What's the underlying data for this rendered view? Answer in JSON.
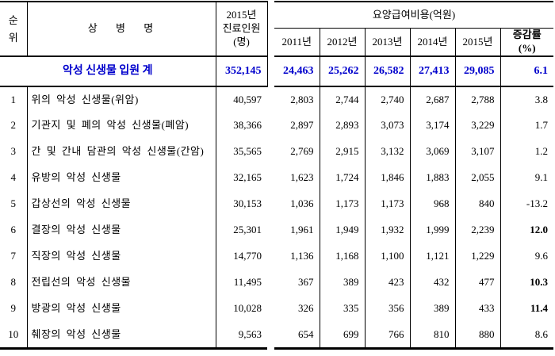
{
  "table": {
    "accent_blue": "#0000cc",
    "header": {
      "rank_lines": [
        "순",
        "위"
      ],
      "disease": "상 병 명",
      "patients_lines": [
        "2015년",
        "진료인원",
        "(명)"
      ],
      "cost_group": "요양급여비용(억원)",
      "years": [
        "2011년",
        "2012년",
        "2013년",
        "2014년",
        "2015년"
      ],
      "rate_lines": [
        "증감률",
        "(%)"
      ]
    },
    "summary": {
      "label": "악성 신생물 입원 계",
      "patients": "352,145",
      "values": [
        "24,463",
        "25,262",
        "26,582",
        "27,413",
        "29,085"
      ],
      "rate": "6.1"
    },
    "rows": [
      {
        "rank": "1",
        "name": "위의 악성 신생물(위암)",
        "patients": "40,597",
        "values": [
          "2,803",
          "2,744",
          "2,740",
          "2,687",
          "2,788"
        ],
        "rate": "3.8",
        "rate_bold": false
      },
      {
        "rank": "2",
        "name": "기관지 및 폐의 악성 신생물(폐암)",
        "patients": "38,366",
        "values": [
          "2,897",
          "2,893",
          "3,073",
          "3,174",
          "3,229"
        ],
        "rate": "1.7",
        "rate_bold": false
      },
      {
        "rank": "3",
        "name": "간 및 간내 담관의 악성 신생물(간암)",
        "patients": "35,565",
        "values": [
          "2,769",
          "2,915",
          "3,132",
          "3,069",
          "3,107"
        ],
        "rate": "1.2",
        "rate_bold": false
      },
      {
        "rank": "4",
        "name": "유방의 악성 신생물",
        "patients": "32,165",
        "values": [
          "1,623",
          "1,724",
          "1,846",
          "1,883",
          "2,055"
        ],
        "rate": "9.1",
        "rate_bold": false
      },
      {
        "rank": "5",
        "name": "갑상선의 악성 신생물",
        "patients": "30,153",
        "values": [
          "1,036",
          "1,173",
          "1,173",
          "968",
          "840"
        ],
        "rate": "-13.2",
        "rate_bold": false
      },
      {
        "rank": "6",
        "name": "결장의 악성 신생물",
        "patients": "25,301",
        "values": [
          "1,961",
          "1,949",
          "1,932",
          "1,999",
          "2,239"
        ],
        "rate": "12.0",
        "rate_bold": true
      },
      {
        "rank": "7",
        "name": "직장의 악성 신생물",
        "patients": "14,770",
        "values": [
          "1,136",
          "1,168",
          "1,100",
          "1,121",
          "1,229"
        ],
        "rate": "9.6",
        "rate_bold": false
      },
      {
        "rank": "8",
        "name": "전립선의 악성 신생물",
        "patients": "11,495",
        "values": [
          "367",
          "389",
          "423",
          "432",
          "477"
        ],
        "rate": "10.3",
        "rate_bold": true
      },
      {
        "rank": "9",
        "name": "방광의 악성 신생물",
        "patients": "10,028",
        "values": [
          "326",
          "335",
          "356",
          "389",
          "433"
        ],
        "rate": "11.4",
        "rate_bold": true
      },
      {
        "rank": "10",
        "name": "췌장의 악성 신생물",
        "patients": "9,563",
        "values": [
          "654",
          "699",
          "766",
          "810",
          "880"
        ],
        "rate": "8.6",
        "rate_bold": false
      }
    ]
  }
}
